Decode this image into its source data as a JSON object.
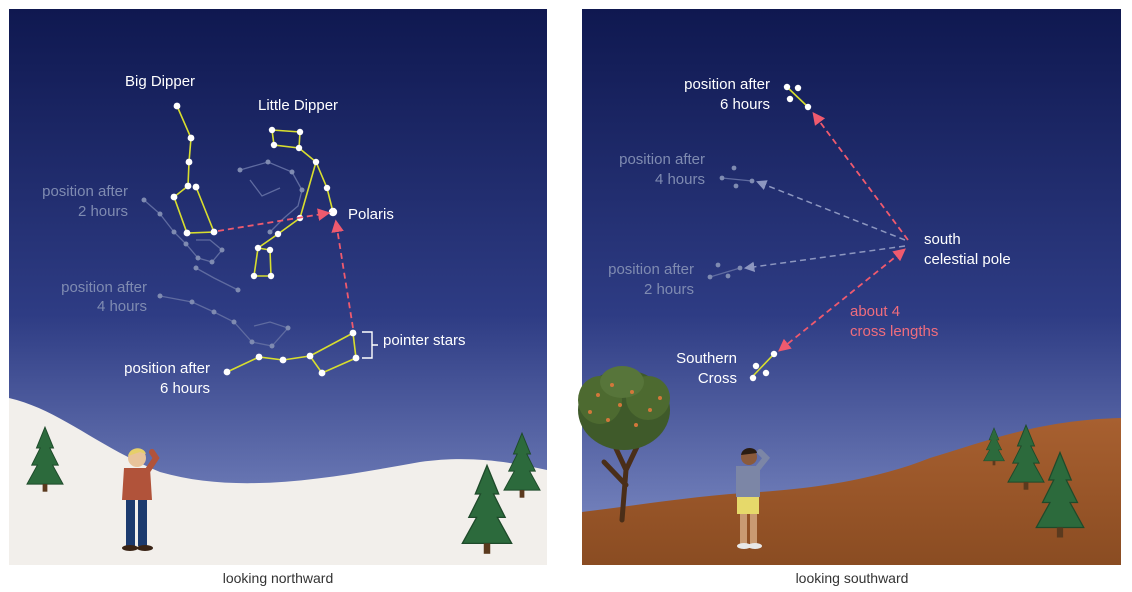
{
  "colors": {
    "sky_top": "#0f1850",
    "sky_bottom": "#7c88c4",
    "snow": "#f2efeb",
    "ground": "#9e5a2a",
    "star_line": "#d8de2e",
    "faint_line": "#5f6ba0",
    "arrow_pink": "#ef5a6e",
    "arrow_faint": "#7f8bb1"
  },
  "north": {
    "caption": "looking northward",
    "labels": {
      "big_dipper": "Big Dipper",
      "little_dipper": "Little Dipper",
      "polaris": "Polaris",
      "pos2_line1": "position after",
      "pos2_line2": "2 hours",
      "pos4_line1": "position after",
      "pos4_line2": "4 hours",
      "pos6_line1": "position after",
      "pos6_line2": "6 hours",
      "pointer_stars": "pointer stars"
    }
  },
  "south": {
    "caption": "looking southward",
    "labels": {
      "pos6_line1": "position after",
      "pos6_line2": "6 hours",
      "pos4_line1": "position after",
      "pos4_line2": "4 hours",
      "pos2_line1": "position after",
      "pos2_line2": "2 hours",
      "pole_line1": "south",
      "pole_line2": "celestial pole",
      "cross_line1": "Southern",
      "cross_line2": "Cross",
      "about_line1": "about 4",
      "about_line2": "cross lengths"
    }
  }
}
